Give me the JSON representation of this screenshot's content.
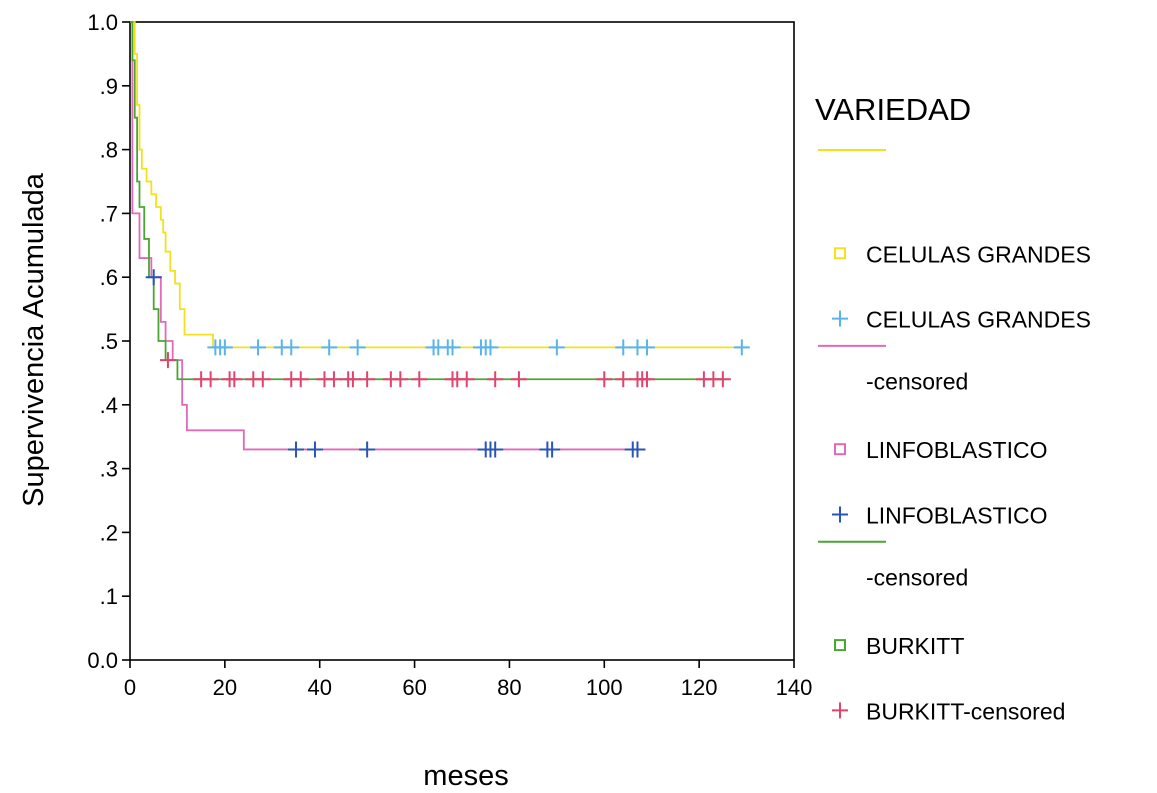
{
  "chart_data": {
    "type": "line",
    "xlabel": "meses",
    "ylabel": "Supervivencia Acumulada",
    "xlim": [
      0,
      140
    ],
    "ylim": [
      0.0,
      1.0
    ],
    "x_ticks": [
      0,
      20,
      40,
      60,
      80,
      100,
      120,
      140
    ],
    "x_tick_labels": [
      "0",
      "20",
      "40",
      "60",
      "80",
      "100",
      "120",
      "140"
    ],
    "y_ticks": [
      0.0,
      0.1,
      0.2,
      0.3,
      0.4,
      0.5,
      0.6,
      0.7,
      0.8,
      0.9,
      1.0
    ],
    "y_tick_labels": [
      "0.0",
      ".1",
      ".2",
      ".3",
      ".4",
      ".5",
      ".6",
      ".7",
      ".8",
      ".9",
      "1.0"
    ],
    "grid": false,
    "legend": {
      "title": "VARIEDAD",
      "placement": "right",
      "entries": [
        {
          "kind": "line",
          "series": 0,
          "label": ""
        },
        {
          "kind": "square",
          "series": 0,
          "label": "CELULAS GRANDES"
        },
        {
          "kind": "plus",
          "series": 0,
          "label": "CELULAS GRANDES",
          "label2": "-censored"
        },
        {
          "kind": "line",
          "series": 1,
          "label": ""
        },
        {
          "kind": "square",
          "series": 1,
          "label": "LINFOBLASTICO"
        },
        {
          "kind": "plus",
          "series": 1,
          "label": "LINFOBLASTICO",
          "label2": "-censored"
        },
        {
          "kind": "line",
          "series": 2,
          "label": ""
        },
        {
          "kind": "square",
          "series": 2,
          "label": "BURKITT"
        },
        {
          "kind": "plus",
          "series": 2,
          "label": "BURKITT-censored"
        }
      ]
    },
    "series": [
      {
        "name": "CELULAS GRANDES",
        "color": "#f2e21c",
        "censor_color": "#5ab4ea",
        "steps": [
          [
            0,
            1.0
          ],
          [
            1,
            0.95
          ],
          [
            1.5,
            0.87
          ],
          [
            2,
            0.8
          ],
          [
            2.5,
            0.77
          ],
          [
            3.5,
            0.75
          ],
          [
            4.5,
            0.73
          ],
          [
            5.5,
            0.71
          ],
          [
            6.5,
            0.69
          ],
          [
            7,
            0.67
          ],
          [
            7.5,
            0.64
          ],
          [
            8.5,
            0.61
          ],
          [
            9.5,
            0.59
          ],
          [
            10.5,
            0.55
          ],
          [
            11.5,
            0.51
          ],
          [
            17.5,
            0.49
          ],
          [
            130,
            0.49
          ]
        ],
        "censored": [
          18,
          19,
          20,
          27,
          32,
          34,
          42,
          48,
          64,
          65,
          67,
          68,
          74,
          75,
          76,
          90,
          104,
          107,
          109,
          129
        ]
      },
      {
        "name": "LINFOBLASTICO",
        "color": "#e06ab8",
        "censor_color": "#2a54b8",
        "steps": [
          [
            0,
            1.0
          ],
          [
            0.5,
            0.7
          ],
          [
            2,
            0.63
          ],
          [
            4.5,
            0.6
          ],
          [
            6.5,
            0.53
          ],
          [
            7.5,
            0.5
          ],
          [
            9,
            0.47
          ],
          [
            11,
            0.4
          ],
          [
            12,
            0.36
          ],
          [
            24,
            0.33
          ],
          [
            108,
            0.33
          ]
        ],
        "censored": [
          5,
          35,
          39,
          50,
          75,
          76,
          77,
          88,
          89,
          106,
          107
        ]
      },
      {
        "name": "BURKITT",
        "color": "#4aa632",
        "censor_color": "#e0436e",
        "steps": [
          [
            0,
            1.0
          ],
          [
            0.5,
            0.94
          ],
          [
            1,
            0.85
          ],
          [
            1.5,
            0.75
          ],
          [
            2,
            0.71
          ],
          [
            3,
            0.66
          ],
          [
            4,
            0.6
          ],
          [
            5,
            0.55
          ],
          [
            6,
            0.5
          ],
          [
            7.5,
            0.47
          ],
          [
            10,
            0.44
          ],
          [
            126,
            0.44
          ]
        ],
        "censored": [
          8,
          15,
          17,
          21,
          22,
          26,
          28,
          34,
          36,
          41,
          43,
          46,
          47,
          50,
          55,
          57,
          61,
          68,
          69,
          71,
          77,
          82,
          100,
          104,
          107,
          108,
          109,
          121,
          123,
          125
        ]
      }
    ]
  }
}
